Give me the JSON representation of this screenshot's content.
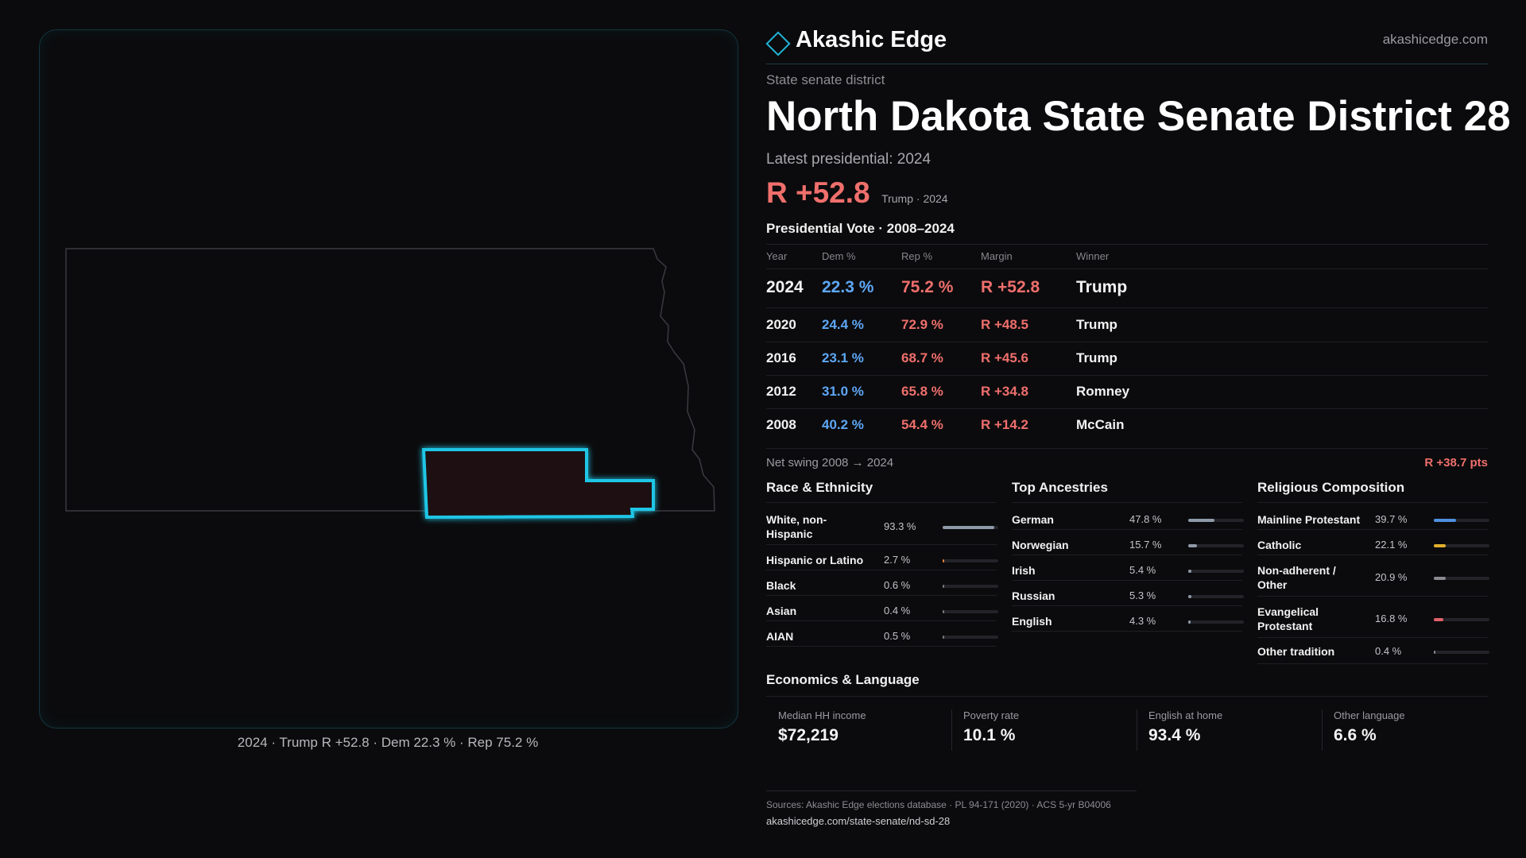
{
  "brand": {
    "name": "Akashic Edge",
    "site": "akashicedge.com"
  },
  "header": {
    "eyebrow": "State senate district",
    "title": "North Dakota State Senate District 28",
    "latest_label": "Latest presidential: 2024",
    "margin": "R +52.8",
    "margin_sub": "Trump · 2024"
  },
  "map": {
    "caption": "2024 · Trump R +52.8 · Dem 22.3 % · Rep 75.2 %",
    "highlight_color": "#1fc6e6",
    "district_fill": "#1e1012"
  },
  "presidential": {
    "title": "Presidential Vote · 2008–2024",
    "headers": {
      "year": "Year",
      "dem": "Dem %",
      "rep": "Rep %",
      "margin": "Margin",
      "winner": "Winner"
    },
    "rows": [
      {
        "year": "2024",
        "dem": "22.3 %",
        "rep": "75.2 %",
        "margin": "R +52.8",
        "winner": "Trump"
      },
      {
        "year": "2020",
        "dem": "24.4 %",
        "rep": "72.9 %",
        "margin": "R +48.5",
        "winner": "Trump"
      },
      {
        "year": "2016",
        "dem": "23.1 %",
        "rep": "68.7 %",
        "margin": "R +45.6",
        "winner": "Trump"
      },
      {
        "year": "2012",
        "dem": "31.0 %",
        "rep": "65.8 %",
        "margin": "R +34.8",
        "winner": "Romney"
      },
      {
        "year": "2008",
        "dem": "40.2 %",
        "rep": "54.4 %",
        "margin": "R +14.2",
        "winner": "McCain"
      }
    ],
    "swing_label": "Net swing 2008 → 2024",
    "swing_value": "R +38.7 pts"
  },
  "race": {
    "title": "Race & Ethnicity",
    "items": [
      {
        "label": "White, non-Hispanic",
        "value": "93.3 %",
        "pct": 93.3,
        "color": "#8e9aa8"
      },
      {
        "label": "Hispanic or Latino",
        "value": "2.7 %",
        "pct": 2.7,
        "color": "#e8823a"
      },
      {
        "label": "Black",
        "value": "0.6 %",
        "pct": 0.6,
        "color": "#7a7a80"
      },
      {
        "label": "Asian",
        "value": "0.4 %",
        "pct": 0.4,
        "color": "#7a7a80"
      },
      {
        "label": "AIAN",
        "value": "0.5 %",
        "pct": 0.5,
        "color": "#7a7a80"
      }
    ]
  },
  "ancestry": {
    "title": "Top Ancestries",
    "items": [
      {
        "label": "German",
        "value": "47.8 %",
        "pct": 47.8,
        "color": "#8e9aa8"
      },
      {
        "label": "Norwegian",
        "value": "15.7 %",
        "pct": 15.7,
        "color": "#8e9aa8"
      },
      {
        "label": "Irish",
        "value": "5.4 %",
        "pct": 5.4,
        "color": "#8e9aa8"
      },
      {
        "label": "Russian",
        "value": "5.3 %",
        "pct": 5.3,
        "color": "#8e9aa8"
      },
      {
        "label": "English",
        "value": "4.3 %",
        "pct": 4.3,
        "color": "#8e9aa8"
      }
    ]
  },
  "religion": {
    "title": "Religious Composition",
    "items": [
      {
        "label": "Mainline Protestant",
        "value": "39.7 %",
        "pct": 39.7,
        "color": "#4f8fe0"
      },
      {
        "label": "Catholic",
        "value": "22.1 %",
        "pct": 22.1,
        "color": "#e3b02c"
      },
      {
        "label": "Non-adherent / Other",
        "value": "20.9 %",
        "pct": 20.9,
        "color": "#8a8a92"
      },
      {
        "label": "Evangelical Protestant",
        "value": "16.8 %",
        "pct": 16.8,
        "color": "#e0606a"
      },
      {
        "label": "Other tradition",
        "value": "0.4 %",
        "pct": 0.4,
        "color": "#8a8a92"
      }
    ]
  },
  "economics": {
    "title": "Economics & Language",
    "items": [
      {
        "label": "Median HH income",
        "value": "$72,219"
      },
      {
        "label": "Poverty rate",
        "value": "10.1 %"
      },
      {
        "label": "English at home",
        "value": "93.4 %"
      },
      {
        "label": "Other language",
        "value": "6.6 %"
      }
    ]
  },
  "footer": {
    "sources": "Sources: Akashic Edge elections database · PL 94-171 (2020) · ACS 5-yr B04006",
    "url": "akashicedge.com/state-senate/nd-sd-28"
  }
}
